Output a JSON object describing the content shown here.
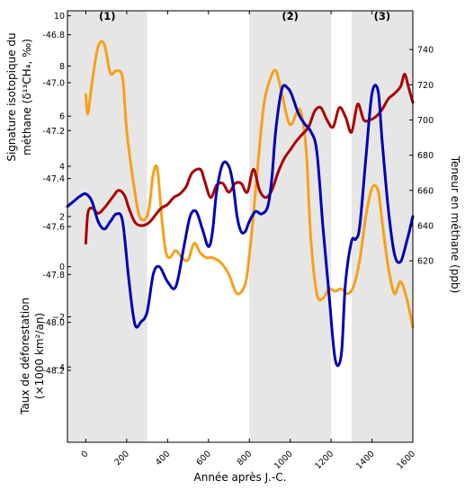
{
  "chart_data": {
    "type": "line",
    "x_label": "Année après J.-C.",
    "x_range": [
      -90,
      1600
    ],
    "x_ticks": [
      "0",
      "200",
      "400",
      "600",
      "800",
      "1000",
      "1200",
      "1400",
      "1600"
    ],
    "shaded_periods": [
      {
        "label": "(1)",
        "start": -90,
        "end": 300
      },
      {
        "label": "(2)",
        "start": 800,
        "end": 1200
      },
      {
        "label": "(3)",
        "start": 1300,
        "end": 1600
      }
    ],
    "panels": [
      {
        "name": "isotope",
        "axis_side": "left",
        "ylabel_line1": "Signature isotopique du",
        "ylabel_line2": "méthane (δ¹³CH₄, ‰)",
        "y_ticks": [
          "-46.8",
          "-47.0",
          "-47.2",
          "-47.4",
          "-47.6",
          "-47.8",
          "-48.0",
          "-48.2"
        ],
        "color": "#f7a01a",
        "x": [
          0,
          10,
          30,
          60,
          90,
          120,
          150,
          180,
          200,
          230,
          260,
          290,
          310,
          330,
          350,
          370,
          390,
          410,
          440,
          470,
          500,
          530,
          560,
          590,
          620,
          660,
          700,
          740,
          780,
          800,
          820,
          840,
          870,
          900,
          930,
          960,
          990,
          1010,
          1040,
          1060,
          1080,
          1100,
          1130,
          1160,
          1190,
          1220,
          1250,
          1280,
          1310,
          1340,
          1370,
          1400,
          1430,
          1450,
          1480,
          1510,
          1540,
          1570,
          1600
        ],
        "y": [
          -47.05,
          -47.13,
          -47.0,
          -46.85,
          -46.84,
          -46.96,
          -46.95,
          -46.98,
          -47.2,
          -47.4,
          -47.55,
          -47.57,
          -47.52,
          -47.38,
          -47.36,
          -47.55,
          -47.7,
          -47.73,
          -47.7,
          -47.73,
          -47.74,
          -47.67,
          -47.71,
          -47.73,
          -47.73,
          -47.75,
          -47.8,
          -47.88,
          -47.84,
          -47.72,
          -47.55,
          -47.36,
          -47.1,
          -46.99,
          -46.95,
          -47.05,
          -47.16,
          -47.17,
          -47.11,
          -47.15,
          -47.3,
          -47.64,
          -47.88,
          -47.9,
          -47.86,
          -47.87,
          -47.86,
          -47.88,
          -47.85,
          -47.74,
          -47.56,
          -47.44,
          -47.45,
          -47.58,
          -47.77,
          -47.88,
          -47.83,
          -47.9,
          -48.02
        ],
        "y_range": [
          -48.5,
          -46.7
        ]
      },
      {
        "name": "methane",
        "axis_side": "right",
        "ylabel": "Teneur en méthane (ppb)",
        "y_ticks": [
          "620",
          "640",
          "660",
          "680",
          "700",
          "720",
          "740"
        ],
        "color": "#aa0000",
        "x": [
          0,
          10,
          30,
          60,
          90,
          130,
          160,
          190,
          210,
          240,
          270,
          300,
          320,
          340,
          370,
          400,
          430,
          460,
          490,
          520,
          560,
          580,
          610,
          640,
          670,
          700,
          730,
          760,
          790,
          820,
          850,
          880,
          910,
          940,
          970,
          1000,
          1030,
          1060,
          1090,
          1120,
          1150,
          1180,
          1210,
          1240,
          1270,
          1300,
          1330,
          1360,
          1390,
          1420,
          1450,
          1480,
          1510,
          1540,
          1560,
          1580,
          1600
        ],
        "y": [
          630,
          647,
          650,
          647,
          650,
          656,
          660,
          657,
          650,
          642,
          640,
          641,
          643,
          646,
          650,
          652,
          656,
          658,
          662,
          670,
          672,
          666,
          656,
          663,
          664,
          659,
          664,
          664,
          659,
          672,
          660,
          656,
          660,
          670,
          678,
          683,
          688,
          692,
          696,
          705,
          707,
          700,
          696,
          707,
          702,
          693,
          709,
          700,
          700,
          702,
          706,
          712,
          715,
          719,
          726,
          718,
          710
        ],
        "y_range": [
          517,
          762
        ]
      },
      {
        "name": "deforestation",
        "axis_side": "left",
        "ylabel_line1": "Taux de déforestation",
        "ylabel_line2": "(×1000 km²/an)",
        "y_ticks": [
          "10",
          "8",
          "6",
          "4",
          "2",
          "0",
          "−2",
          "−4"
        ],
        "color": "#0000b3",
        "x": [
          -90,
          -60,
          -30,
          0,
          30,
          60,
          90,
          120,
          150,
          180,
          210,
          240,
          270,
          300,
          330,
          360,
          400,
          440,
          480,
          510,
          540,
          570,
          600,
          620,
          640,
          670,
          700,
          720,
          740,
          760,
          780,
          800,
          830,
          860,
          890,
          910,
          930,
          960,
          990,
          1010,
          1040,
          1070,
          1100,
          1130,
          1160,
          1190,
          1220,
          1250,
          1270,
          1300,
          1320,
          1340,
          1370,
          1400,
          1430,
          1450,
          1480,
          1510,
          1540,
          1570,
          1600
        ],
        "y": [
          2.4,
          2.6,
          2.8,
          2.9,
          2.6,
          1.8,
          1.5,
          1.8,
          2.1,
          1.8,
          -0.5,
          -2.3,
          -2.2,
          -1.8,
          -0.3,
          0,
          -0.6,
          -0.8,
          0.8,
          2.0,
          2.2,
          1.5,
          0.8,
          1.4,
          3.0,
          4.1,
          4.0,
          3.3,
          2.0,
          1.4,
          1.4,
          1.8,
          2.2,
          2.1,
          2.4,
          3.5,
          5.5,
          7.1,
          7.1,
          6.8,
          6.1,
          5.7,
          5.4,
          4.6,
          1.6,
          -1.1,
          -3.7,
          -3.5,
          -0.7,
          1.0,
          1.1,
          1.6,
          4.3,
          6.9,
          7.0,
          5.0,
          2.3,
          0.5,
          0.2,
          1.0,
          2.0
        ],
        "y_range": [
          -7,
          10.2
        ]
      }
    ]
  }
}
